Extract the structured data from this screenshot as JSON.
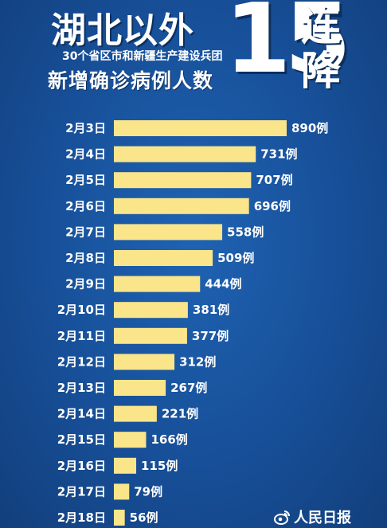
{
  "header": {
    "title": "湖北以外",
    "subtitle_line1": "30个省区市和新疆生产建设兵团",
    "subtitle_line2": "新增确诊病例人数",
    "big_number": "15",
    "big_word_1": "连",
    "big_word_2": "降"
  },
  "logo": {
    "text": "人民日报",
    "icon": "weibo-icon"
  },
  "colors": {
    "background": "#174f98",
    "bar": "#fbe58a",
    "text": "#ffffff"
  },
  "chart_data": {
    "type": "bar",
    "orientation": "horizontal",
    "title": "",
    "xlabel": "",
    "ylabel": "",
    "categories": [
      "2月3日",
      "2月4日",
      "2月5日",
      "2月6日",
      "2月7日",
      "2月8日",
      "2月9日",
      "2月10日",
      "2月11日",
      "2月12日",
      "2月13日",
      "2月14日",
      "2月15日",
      "2月16日",
      "2月17日",
      "2月18日"
    ],
    "values": [
      890,
      731,
      707,
      696,
      558,
      509,
      444,
      381,
      377,
      312,
      267,
      221,
      166,
      115,
      79,
      56
    ],
    "value_labels": [
      "890例",
      "731例",
      "707例",
      "696例",
      "558例",
      "509例",
      "444例",
      "381例",
      "377例",
      "312例",
      "267例",
      "221例",
      "166例",
      "115例",
      "79例",
      "56例"
    ],
    "xlim": [
      0,
      890
    ],
    "grid": false,
    "legend": "none"
  }
}
